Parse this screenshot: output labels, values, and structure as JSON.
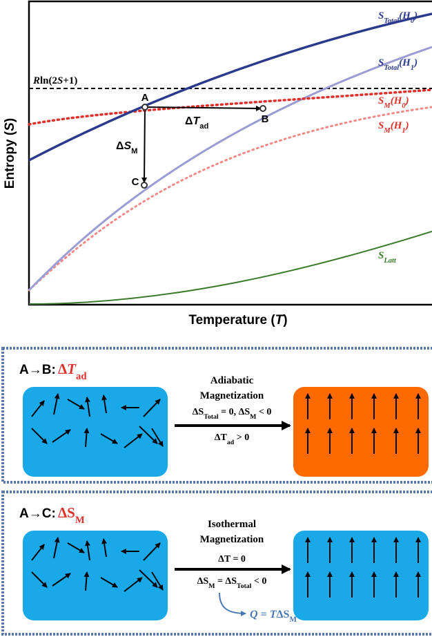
{
  "plot": {
    "y_axis_label": [
      "Entropy (",
      "S",
      ")"
    ],
    "x_axis_label": [
      "Temperature (",
      "T",
      ")"
    ],
    "rln": [
      "R",
      "ln(2",
      "S",
      "+1)"
    ],
    "curves": {
      "s_total_h0": [
        "S",
        "Total",
        "(",
        "H",
        "0",
        ")"
      ],
      "s_total_h1": [
        "S",
        "Total",
        "(",
        "H",
        "1",
        ")"
      ],
      "s_m_h0": [
        "S",
        "M",
        "(",
        "H",
        "0",
        ")"
      ],
      "s_m_h1": [
        "S",
        "M",
        "(",
        "H",
        "1",
        ")"
      ],
      "s_latt": [
        "S",
        "Latt"
      ]
    },
    "points": [
      "A",
      "B",
      "C"
    ],
    "delta_t_ad": [
      "Δ",
      "T",
      "ad"
    ],
    "delta_s_m": [
      "Δ",
      "S",
      "M"
    ]
  },
  "panels": [
    {
      "title": "A→B:",
      "symbol": [
        "Δ",
        "T",
        "ad"
      ],
      "process": [
        "Adiabatic",
        "Magnetization"
      ],
      "conditions": [
        [
          "ΔS",
          "Total",
          " = 0, ΔS",
          "M",
          " < 0"
        ],
        [
          "ΔT",
          "ad",
          " > 0"
        ]
      ]
    },
    {
      "title": "A→C:",
      "symbol": [
        "Δ",
        "S",
        "M"
      ],
      "process": [
        "Isothermal",
        "Magnetization"
      ],
      "conditions": [
        [
          "ΔT = 0"
        ],
        [
          "ΔS",
          "M",
          " = ΔS",
          "Total",
          " < 0"
        ]
      ],
      "heat": [
        "Q",
        " = ",
        "T",
        "ΔS",
        "M"
      ]
    }
  ]
}
